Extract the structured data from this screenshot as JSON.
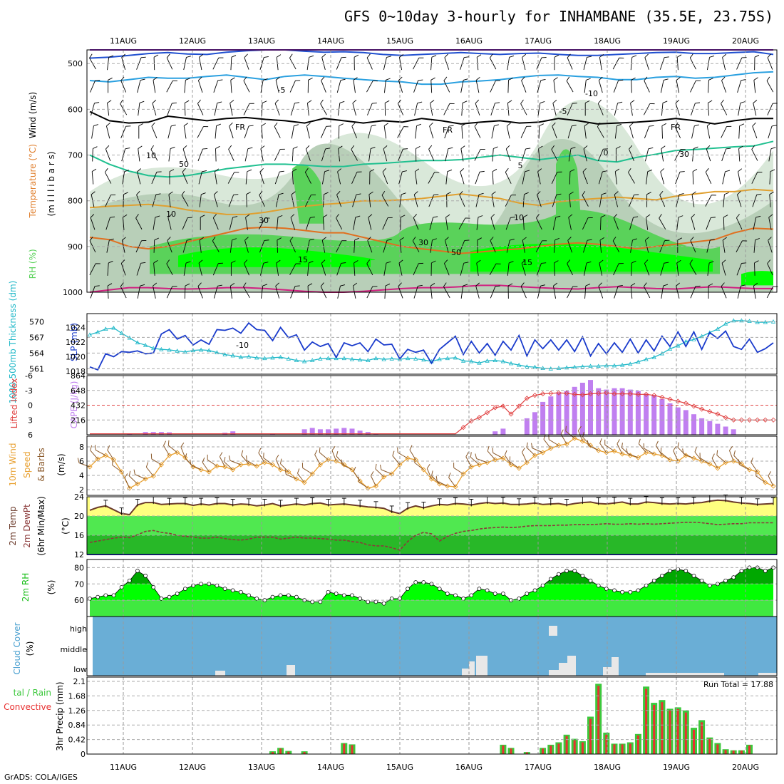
{
  "title": "GFS 0~10day 3-hourly for INHAMBANE (35.5E, 23.75S)",
  "footer": "GrADS: COLA/IGES",
  "run_total_label": "Run Total = 17.88",
  "date_labels": [
    "11AUG",
    "12AUG",
    "13AUG",
    "14AUG",
    "15AUG",
    "16AUG",
    "17AUG",
    "18AUG",
    "19AUG",
    "20AUG"
  ],
  "colors": {
    "rh_light": "#d9e8d9",
    "rh_mid": "#b8cfb8",
    "rh_green": "#5ad25a",
    "rh_bright": "#00ff00",
    "temp_minus10": "#2050d0",
    "temp_minus5": "#2aa0e0",
    "temp_0": "#20c090",
    "temp_5": "#e0a030",
    "temp_15": "#e07020",
    "freezing": "#000000",
    "slp": "#1a3bcc",
    "thickness": "#20b8c8",
    "lifted_index": "#e04040",
    "cape": "#c07ff0",
    "wind_speed": "#e8a030",
    "barb": "#8b5a2b",
    "temp_line": "#6b3a2a",
    "dewpt_line": "#8b3a3a",
    "cloud_bg": "#6aaed6",
    "cloud_fill": "#e8e8e8",
    "precip_total": "#3cc83c",
    "precip_conv": "#e83030"
  },
  "panels": {
    "upper": {
      "ylabel_parts": [
        "Wind (m/s)",
        "Temperature (°C)",
        "RH (%)"
      ],
      "units": "(m i l l i b a r s)",
      "pressure_ticks": [
        "500",
        "600",
        "700",
        "800",
        "900",
        "1000"
      ],
      "contour_labels": [
        "-10",
        "-10",
        "-5",
        "-5",
        "FR",
        "FR",
        "FR",
        "5",
        "10",
        "10",
        "15",
        "15",
        "10",
        "30",
        "50",
        "30",
        "50",
        "0",
        "30"
      ]
    },
    "thickness_slp": {
      "ylabel_left": "1000-500mb Thickness (dm)",
      "ylabel_right": "SLP (mb)",
      "thick_ticks": [
        "570",
        "567",
        "564",
        "561"
      ],
      "slp_ticks": [
        "1024",
        "1022",
        "1020",
        "1018"
      ]
    },
    "li_cape": {
      "ylabel_left": "Lifted Index",
      "ylabel_right": "CAPE (J/kg)",
      "li_ticks": [
        "-6",
        "-3",
        "0",
        "3",
        "6"
      ],
      "cape_ticks": [
        "864",
        "648",
        "432",
        "216"
      ]
    },
    "wind10m": {
      "ylabel_a": "10m Wind",
      "ylabel_b": "Speed",
      "ylabel_c": "& Barbs",
      "units": "(m/s)",
      "ticks": [
        "8",
        "6",
        "4",
        "2"
      ]
    },
    "temp2m": {
      "ylabel_a": "2m Temp",
      "ylabel_b": "2m DewPt",
      "ylabel_c": "(6hr Min/Max)",
      "units": "(°C)",
      "ticks": [
        "24",
        "20",
        "16",
        "12"
      ]
    },
    "rh2m": {
      "ylabel": "2m RH",
      "units": "(%)",
      "ticks": [
        "80",
        "70",
        "60"
      ]
    },
    "cloud": {
      "ylabel": "Cloud Cover",
      "units": "(%)",
      "levels": [
        "high",
        "middle",
        "low"
      ]
    },
    "precip": {
      "ylabel_a": "tal / Rain",
      "ylabel_b": "Convective",
      "ylabel_c": "3hr Precip (mm)",
      "ticks": [
        "2.1",
        "1.68",
        "1.26",
        "0.84",
        "0.42",
        "0"
      ]
    }
  },
  "chart_data": [
    {
      "type": "line",
      "title": "1000-500mb Thickness (dm) / SLP (mb)",
      "series": [
        {
          "name": "SLP (mb)",
          "values": [
            1018.6,
            1018.2,
            1020.4,
            1020.0,
            1020.7,
            1020.6,
            1020.8,
            1020.4,
            1020.5,
            1023.1,
            1023.7,
            1022.4,
            1022.9,
            1021.6,
            1022.3,
            1021.7,
            1023.7,
            1023.6,
            1023.9,
            1023.2,
            1024.6,
            1023.7,
            1023.6,
            1022.2,
            1024.0,
            1022.6,
            1023.0,
            1020.9,
            1022.0,
            1021.4,
            1021.8,
            1019.9,
            1021.9,
            1021.5,
            1021.9,
            1020.7,
            1022.4,
            1021.6,
            1021.7,
            1019.7,
            1021.0,
            1020.6,
            1020.9,
            1019.1,
            1021.0,
            1021.9,
            1022.8,
            1020.3,
            1022.1,
            1020.5,
            1021.8,
            1020.2,
            1022.1,
            1020.9,
            1022.9,
            1020.1,
            1022.3,
            1021.1,
            1022.3,
            1020.9,
            1022.3,
            1020.7,
            1022.7,
            1020.1,
            1021.8,
            1020.4,
            1021.9,
            1020.6,
            1022.4,
            1020.5,
            1022.3,
            1020.8,
            1022.8,
            1021.4,
            1023.4,
            1021.4,
            1023.4,
            1021.0,
            1023.3,
            1022.5,
            1023.5,
            1021.4,
            1021.0,
            1022.4,
            1020.6,
            1021.1,
            1021.9
          ]
        },
        {
          "name": "1000-500mb Thickness (dm)",
          "values": [
            567.5,
            568.0,
            568.6,
            568.8,
            567.8,
            566.9,
            566.0,
            565.5,
            564.9,
            564.7,
            564.6,
            564.4,
            564.2,
            564.5,
            564.6,
            564.5,
            564.1,
            563.7,
            563.5,
            563.2,
            563.3,
            563.1,
            563.0,
            563.1,
            563.2,
            562.9,
            562.6,
            562.4,
            562.6,
            562.9,
            563.0,
            563.0,
            563.0,
            562.8,
            562.7,
            562.6,
            563.0,
            562.8,
            562.9,
            562.8,
            563.0,
            562.9,
            562.7,
            562.4,
            562.8,
            563.0,
            563.1,
            562.5,
            562.4,
            562.1,
            562.5,
            562.6,
            562.4,
            562.0,
            561.7,
            561.4,
            561.3,
            561.1,
            561.0,
            561.1,
            561.2,
            561.3,
            561.4,
            561.5,
            561.5,
            561.6,
            561.6,
            561.7,
            561.9,
            562.3,
            562.8,
            563.2,
            563.9,
            564.8,
            565.4,
            566.2,
            566.6,
            567.2,
            567.9,
            568.6,
            569.6,
            570.2,
            570.2,
            570.1,
            569.9,
            569.9,
            570.0
          ]
        }
      ]
    },
    {
      "type": "bar",
      "title": "Lifted Index / CAPE (J/kg)",
      "series": [
        {
          "name": "CAPE (J/kg)",
          "values": [
            0,
            0,
            0,
            0,
            0,
            10,
            0,
            40,
            40,
            40,
            35,
            0,
            0,
            0,
            0,
            0,
            0,
            30,
            50,
            0,
            0,
            0,
            0,
            10,
            0,
            0,
            0,
            80,
            100,
            80,
            80,
            90,
            100,
            90,
            60,
            40,
            20,
            0,
            0,
            0,
            0,
            0,
            0,
            0,
            0,
            0,
            0,
            0,
            0,
            0,
            0,
            50,
            90,
            0,
            0,
            240,
            330,
            480,
            560,
            620,
            640,
            700,
            760,
            800,
            680,
            660,
            680,
            680,
            660,
            640,
            600,
            580,
            520,
            460,
            400,
            360,
            300,
            240,
            200,
            160,
            120,
            80,
            0,
            0,
            0,
            0,
            0
          ]
        },
        {
          "name": "Lifted Index",
          "values": [
            5.8,
            5.8,
            5.8,
            5.8,
            5.8,
            5.8,
            5.8,
            5.8,
            5.8,
            5.8,
            5.8,
            5.8,
            5.8,
            5.8,
            5.8,
            5.8,
            5.8,
            5.8,
            5.8,
            5.8,
            5.8,
            5.8,
            5.8,
            5.8,
            5.8,
            5.8,
            5.8,
            5.8,
            5.8,
            5.8,
            5.8,
            5.8,
            5.8,
            5.8,
            5.8,
            5.8,
            5.8,
            5.8,
            5.8,
            5.8,
            5.8,
            5.8,
            5.8,
            5.8,
            5.8,
            5.8,
            5.8,
            4.5,
            3.2,
            2.5,
            1.5,
            0.5,
            0.2,
            1.8,
            0.2,
            -1.4,
            -2.0,
            -2.3,
            -2.4,
            -2.5,
            -2.4,
            -2.2,
            -2.1,
            -2.3,
            -2.4,
            -2.5,
            -2.3,
            -2.3,
            -2.3,
            -2.2,
            -2.2,
            -2.0,
            -1.6,
            -1.2,
            -0.8,
            -0.4,
            0.2,
            0.8,
            1.3,
            1.8,
            2.5,
            3.0,
            3.0,
            3.0,
            3.0,
            3.0,
            3.0
          ]
        }
      ]
    },
    {
      "type": "line",
      "title": "10m Wind Speed (m/s)",
      "series": [
        {
          "name": "10m Wind Speed",
          "values": [
            5.2,
            6.3,
            6.8,
            6.2,
            4.5,
            2.2,
            2.8,
            3.5,
            3.9,
            5.5,
            6.8,
            7.2,
            6.5,
            5.2,
            4.8,
            4.5,
            5.3,
            5.2,
            4.8,
            5.5,
            5.6,
            5.3,
            5.8,
            5.5,
            4.8,
            4.5,
            3.5,
            3.0,
            4.2,
            5.5,
            6.2,
            6.0,
            5.5,
            4.8,
            3.2,
            2.2,
            2.5,
            3.8,
            4.2,
            5.5,
            6.4,
            6.2,
            4.8,
            3.5,
            2.8,
            2.5,
            2.4,
            4.2,
            5.2,
            5.5,
            5.8,
            6.2,
            6.4,
            5.5,
            5.0,
            5.8,
            6.8,
            7.2,
            7.8,
            8.2,
            8.4,
            9.2,
            8.8,
            8.2,
            7.5,
            7.2,
            7.4,
            7.0,
            6.8,
            6.5,
            7.2,
            7.0,
            6.8,
            6.2,
            6.0,
            6.8,
            6.4,
            6.0,
            5.6,
            5.0,
            5.8,
            6.0,
            5.6,
            4.8,
            4.5,
            3.0,
            2.5
          ]
        }
      ]
    },
    {
      "type": "line",
      "title": "2m Temp / 2m DewPt (°C)",
      "series": [
        {
          "name": "2m Temp",
          "values": [
            21.2,
            21.8,
            22.1,
            21.3,
            20.5,
            20.3,
            22.3,
            22.8,
            22.8,
            22.4,
            22.5,
            22.6,
            22.6,
            22.2,
            22.5,
            22.3,
            22.6,
            22.6,
            22.3,
            22.5,
            22.4,
            22.1,
            22.3,
            22.6,
            22.1,
            22.3,
            22.5,
            22.3,
            22.6,
            22.7,
            22.3,
            22.4,
            22.5,
            22.3,
            22.1,
            21.9,
            21.8,
            21.6,
            20.9,
            20.5,
            21.6,
            22.1,
            21.7,
            22.1,
            22.4,
            22.3,
            22.6,
            22.5,
            22.3,
            22.6,
            22.8,
            22.6,
            22.7,
            22.4,
            22.4,
            22.5,
            22.7,
            22.4,
            22.5,
            22.6,
            22.3,
            22.6,
            22.8,
            22.9,
            22.6,
            22.5,
            22.7,
            22.9,
            22.5,
            22.5,
            22.9,
            22.8,
            22.6,
            22.5,
            22.6,
            22.5,
            22.7,
            22.8,
            23.1,
            23.3,
            23.2,
            22.9,
            22.7,
            22.6,
            22.4,
            22.5,
            22.6
          ]
        },
        {
          "name": "2m DewPt",
          "values": [
            14.5,
            14.8,
            15.1,
            15.4,
            15.6,
            15.5,
            16.1,
            16.8,
            17.0,
            16.6,
            16.4,
            16.0,
            15.8,
            15.6,
            15.4,
            15.4,
            15.6,
            15.3,
            15.1,
            15.0,
            15.2,
            15.6,
            15.6,
            15.6,
            15.2,
            15.4,
            15.6,
            15.4,
            15.4,
            15.3,
            15.2,
            15.0,
            15.0,
            14.7,
            14.5,
            14.0,
            13.8,
            13.8,
            13.4,
            12.9,
            14.7,
            16.0,
            16.6,
            16.3,
            14.8,
            15.8,
            16.4,
            16.8,
            17.0,
            17.3,
            17.5,
            17.6,
            17.7,
            17.6,
            17.7,
            17.9,
            18.0,
            18.0,
            18.0,
            18.1,
            18.1,
            18.2,
            18.2,
            18.2,
            18.3,
            18.4,
            18.3,
            18.3,
            18.4,
            18.3,
            18.4,
            18.3,
            18.4,
            18.5,
            18.6,
            18.7,
            18.7,
            18.6,
            18.4,
            18.2,
            18.3,
            18.4,
            18.4,
            18.6,
            18.6,
            18.6,
            18.6
          ]
        }
      ]
    },
    {
      "type": "area",
      "title": "2m RH (%)",
      "series": [
        {
          "name": "2m RH",
          "values": [
            61,
            62,
            63,
            63,
            68,
            72,
            78,
            75,
            68,
            61,
            62,
            64,
            67,
            69,
            70,
            70,
            69,
            67,
            66,
            65,
            63,
            61,
            60,
            62,
            63,
            63,
            62,
            60,
            59,
            59,
            65,
            64,
            63,
            63,
            61,
            59,
            59,
            58,
            61,
            61,
            67,
            71,
            71,
            70,
            67,
            64,
            63,
            61,
            63,
            67,
            66,
            64,
            64,
            60,
            61,
            64,
            66,
            69,
            73,
            76,
            78,
            78,
            75,
            72,
            69,
            67,
            66,
            65,
            65,
            66,
            69,
            72,
            75,
            78,
            79,
            78,
            75,
            72,
            69,
            70,
            72,
            74,
            78,
            80,
            80,
            78,
            80
          ]
        }
      ]
    },
    {
      "type": "bar",
      "title": "3hr Precip (mm)",
      "series": [
        {
          "name": "Total / Rain",
          "values": [
            0,
            0,
            0,
            0,
            0,
            0,
            0,
            0,
            0,
            0,
            0,
            0,
            0,
            0,
            0,
            0,
            0,
            0,
            0,
            0,
            0,
            0,
            0,
            0.08,
            0.18,
            0.09,
            0,
            0.08,
            0,
            0,
            0,
            0,
            0.32,
            0.28,
            0,
            0,
            0,
            0,
            0,
            0,
            0,
            0,
            0,
            0,
            0,
            0,
            0,
            0,
            0,
            0,
            0,
            0,
            0.27,
            0.18,
            0,
            0.06,
            0,
            0.18,
            0.27,
            0.34,
            0.56,
            0.44,
            0.37,
            1.08,
            2.03,
            0.62,
            0.3,
            0.3,
            0.34,
            0.58,
            1.95,
            1.48,
            1.56,
            1.31,
            1.35,
            1.26,
            0.76,
            0.98,
            0.48,
            0.32,
            0.14,
            0.11,
            0.11,
            0.27,
            0,
            0,
            0
          ]
        },
        {
          "name": "Convective",
          "values": [
            0,
            0,
            0,
            0,
            0,
            0,
            0,
            0,
            0,
            0,
            0,
            0,
            0,
            0,
            0,
            0,
            0,
            0,
            0,
            0,
            0,
            0,
            0,
            0.06,
            0.16,
            0.07,
            0,
            0.06,
            0,
            0,
            0,
            0,
            0.3,
            0.26,
            0,
            0,
            0,
            0,
            0,
            0,
            0,
            0,
            0,
            0,
            0,
            0,
            0,
            0,
            0,
            0,
            0,
            0,
            0.25,
            0.16,
            0,
            0.05,
            0,
            0.16,
            0.24,
            0.3,
            0.52,
            0.4,
            0.34,
            1.02,
            1.97,
            0.56,
            0.28,
            0.28,
            0.3,
            0.54,
            1.88,
            1.42,
            1.5,
            1.26,
            1.3,
            1.2,
            0.7,
            0.92,
            0.44,
            0.28,
            0.12,
            0.1,
            0.1,
            0.25,
            0,
            0,
            0
          ]
        }
      ]
    }
  ]
}
